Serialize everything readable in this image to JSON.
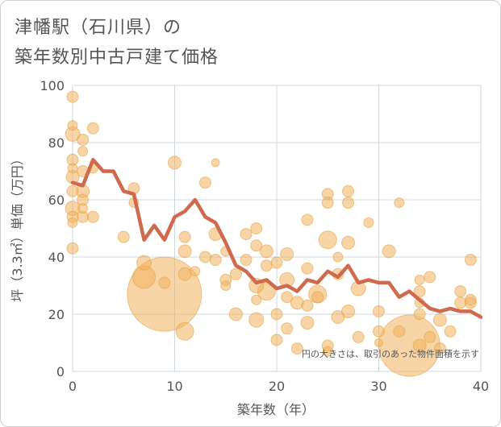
{
  "title": {
    "line1": "津幡駅（石川県）の",
    "line2": "築年数別中古戸建て価格"
  },
  "chart_data": {
    "type": "scatter",
    "xlabel": "築年数（年）",
    "ylabel": "坪（3.3㎡）単価（万円）",
    "xlim": [
      0,
      40
    ],
    "ylim": [
      0,
      100
    ],
    "xticks": [
      0,
      10,
      20,
      30,
      40
    ],
    "yticks": [
      0,
      20,
      40,
      60,
      80,
      100
    ],
    "grid": true,
    "note": "円の大きさは、取引のあった物件面積を示す",
    "colors": {
      "bubble": "#f0b35e",
      "line": "#d0694e",
      "grid": "#cfd8e0"
    },
    "line": {
      "x": [
        0,
        1,
        2,
        3,
        4,
        5,
        6,
        7,
        8,
        9,
        10,
        11,
        12,
        13,
        14,
        15,
        16,
        17,
        18,
        19,
        20,
        21,
        22,
        23,
        24,
        25,
        26,
        27,
        28,
        29,
        30,
        31,
        32,
        33,
        34,
        35,
        36,
        37,
        38,
        39,
        40
      ],
      "y": [
        66,
        65,
        74,
        70,
        70,
        63,
        62,
        46,
        51,
        46,
        54,
        56,
        60,
        54,
        52,
        45,
        37,
        35,
        31,
        32,
        29,
        30,
        28,
        32,
        31,
        35,
        33,
        37,
        31,
        32,
        31,
        31,
        26,
        28,
        25,
        22,
        21,
        22,
        21,
        21,
        19
      ]
    },
    "bubbles": [
      {
        "x": 0,
        "y": 96,
        "s": 7
      },
      {
        "x": 0,
        "y": 86,
        "s": 6
      },
      {
        "x": 0,
        "y": 83,
        "s": 9
      },
      {
        "x": 0,
        "y": 74,
        "s": 7
      },
      {
        "x": 0,
        "y": 71,
        "s": 6
      },
      {
        "x": 0,
        "y": 68,
        "s": 8
      },
      {
        "x": 0,
        "y": 63,
        "s": 7
      },
      {
        "x": 0,
        "y": 57,
        "s": 9
      },
      {
        "x": 0,
        "y": 54,
        "s": 7
      },
      {
        "x": 0,
        "y": 52,
        "s": 6
      },
      {
        "x": 0,
        "y": 43,
        "s": 7
      },
      {
        "x": 1,
        "y": 81,
        "s": 7
      },
      {
        "x": 1,
        "y": 77,
        "s": 6
      },
      {
        "x": 1,
        "y": 70,
        "s": 7
      },
      {
        "x": 1,
        "y": 63,
        "s": 8
      },
      {
        "x": 1,
        "y": 60,
        "s": 7
      },
      {
        "x": 1,
        "y": 57,
        "s": 6
      },
      {
        "x": 1,
        "y": 54,
        "s": 7
      },
      {
        "x": 2,
        "y": 85,
        "s": 7
      },
      {
        "x": 2,
        "y": 71,
        "s": 6
      },
      {
        "x": 2,
        "y": 54,
        "s": 7
      },
      {
        "x": 5,
        "y": 47,
        "s": 7
      },
      {
        "x": 6,
        "y": 64,
        "s": 7
      },
      {
        "x": 6,
        "y": 59,
        "s": 6
      },
      {
        "x": 7,
        "y": 38,
        "s": 9
      },
      {
        "x": 7,
        "y": 33,
        "s": 14
      },
      {
        "x": 9,
        "y": 27,
        "s": 46
      },
      {
        "x": 9,
        "y": 31,
        "s": 7
      },
      {
        "x": 10,
        "y": 73,
        "s": 8
      },
      {
        "x": 11,
        "y": 47,
        "s": 7
      },
      {
        "x": 11,
        "y": 42,
        "s": 8
      },
      {
        "x": 11,
        "y": 34,
        "s": 8
      },
      {
        "x": 11,
        "y": 14,
        "s": 11
      },
      {
        "x": 12,
        "y": 35,
        "s": 6
      },
      {
        "x": 13,
        "y": 66,
        "s": 7
      },
      {
        "x": 13,
        "y": 40,
        "s": 7
      },
      {
        "x": 14,
        "y": 73,
        "s": 5
      },
      {
        "x": 14,
        "y": 48,
        "s": 8
      },
      {
        "x": 14,
        "y": 39,
        "s": 7
      },
      {
        "x": 15,
        "y": 42,
        "s": 6
      },
      {
        "x": 15,
        "y": 32,
        "s": 7
      },
      {
        "x": 15,
        "y": 30,
        "s": 6
      },
      {
        "x": 16,
        "y": 34,
        "s": 7
      },
      {
        "x": 16,
        "y": 20,
        "s": 8
      },
      {
        "x": 17,
        "y": 48,
        "s": 7
      },
      {
        "x": 17,
        "y": 39,
        "s": 7
      },
      {
        "x": 18,
        "y": 50,
        "s": 7
      },
      {
        "x": 18,
        "y": 44,
        "s": 7
      },
      {
        "x": 18,
        "y": 30,
        "s": 9
      },
      {
        "x": 18,
        "y": 25,
        "s": 6
      },
      {
        "x": 18,
        "y": 18,
        "s": 9
      },
      {
        "x": 19,
        "y": 42,
        "s": 8
      },
      {
        "x": 19,
        "y": 37,
        "s": 7
      },
      {
        "x": 19,
        "y": 28,
        "s": 11
      },
      {
        "x": 20,
        "y": 38,
        "s": 7
      },
      {
        "x": 20,
        "y": 20,
        "s": 7
      },
      {
        "x": 20,
        "y": 11,
        "s": 7
      },
      {
        "x": 21,
        "y": 41,
        "s": 8
      },
      {
        "x": 21,
        "y": 32,
        "s": 9
      },
      {
        "x": 21,
        "y": 26,
        "s": 7
      },
      {
        "x": 21,
        "y": 15,
        "s": 7
      },
      {
        "x": 22,
        "y": 24,
        "s": 8
      },
      {
        "x": 22,
        "y": 8,
        "s": 7
      },
      {
        "x": 23,
        "y": 53,
        "s": 7
      },
      {
        "x": 23,
        "y": 36,
        "s": 7
      },
      {
        "x": 23,
        "y": 23,
        "s": 7
      },
      {
        "x": 23,
        "y": 17,
        "s": 8
      },
      {
        "x": 24,
        "y": 27,
        "s": 11
      },
      {
        "x": 24,
        "y": 26,
        "s": 7
      },
      {
        "x": 25,
        "y": 62,
        "s": 7
      },
      {
        "x": 25,
        "y": 59,
        "s": 7
      },
      {
        "x": 25,
        "y": 46,
        "s": 11
      },
      {
        "x": 25,
        "y": 9,
        "s": 7
      },
      {
        "x": 25,
        "y": 7,
        "s": 6
      },
      {
        "x": 26,
        "y": 40,
        "s": 6
      },
      {
        "x": 26,
        "y": 34,
        "s": 7
      },
      {
        "x": 26,
        "y": 19,
        "s": 8
      },
      {
        "x": 27,
        "y": 63,
        "s": 7
      },
      {
        "x": 27,
        "y": 59,
        "s": 7
      },
      {
        "x": 27,
        "y": 45,
        "s": 8
      },
      {
        "x": 27,
        "y": 21,
        "s": 8
      },
      {
        "x": 28,
        "y": 29,
        "s": 9
      },
      {
        "x": 28,
        "y": 12,
        "s": 7
      },
      {
        "x": 29,
        "y": 52,
        "s": 6
      },
      {
        "x": 30,
        "y": 21,
        "s": 7
      },
      {
        "x": 30,
        "y": 14,
        "s": 7
      },
      {
        "x": 30,
        "y": 10,
        "s": 5
      },
      {
        "x": 31,
        "y": 42,
        "s": 8
      },
      {
        "x": 32,
        "y": 59,
        "s": 6
      },
      {
        "x": 32,
        "y": 14,
        "s": 7
      },
      {
        "x": 33,
        "y": 9,
        "s": 38
      },
      {
        "x": 34,
        "y": 32,
        "s": 6
      },
      {
        "x": 34,
        "y": 28,
        "s": 7
      },
      {
        "x": 34,
        "y": 24,
        "s": 6
      },
      {
        "x": 34,
        "y": 20,
        "s": 7
      },
      {
        "x": 34,
        "y": 9,
        "s": 8
      },
      {
        "x": 35,
        "y": 33,
        "s": 7
      },
      {
        "x": 35,
        "y": 12,
        "s": 7
      },
      {
        "x": 36,
        "y": 18,
        "s": 8
      },
      {
        "x": 36,
        "y": 8,
        "s": 7
      },
      {
        "x": 37,
        "y": 14,
        "s": 7
      },
      {
        "x": 38,
        "y": 28,
        "s": 7
      },
      {
        "x": 38,
        "y": 24,
        "s": 7
      },
      {
        "x": 39,
        "y": 39,
        "s": 7
      },
      {
        "x": 39,
        "y": 25,
        "s": 7
      },
      {
        "x": 39,
        "y": 24,
        "s": 7
      }
    ]
  }
}
